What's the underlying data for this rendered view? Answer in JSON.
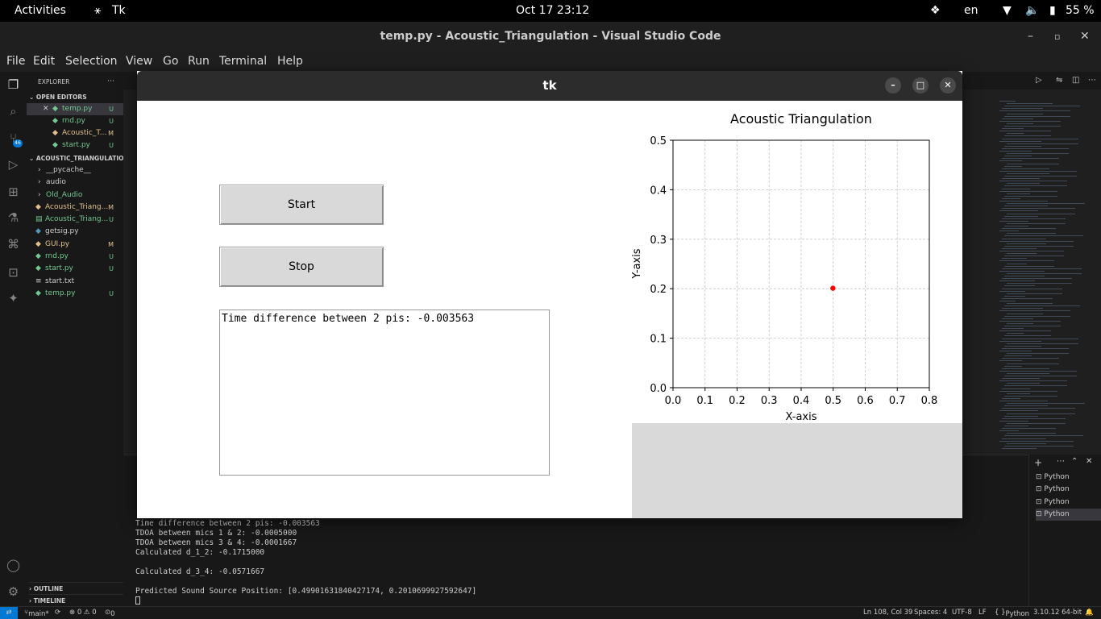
{
  "topbar": {
    "activities": "Activities",
    "app": "Tk",
    "clock": "Oct 17  23:12",
    "lang": "en",
    "battery": "55 %"
  },
  "vscode": {
    "title": "temp.py - Acoustic_Triangulation - Visual Studio Code",
    "menu": [
      "File",
      "Edit",
      "Selection",
      "View",
      "Go",
      "Run",
      "Terminal",
      "Help"
    ],
    "explorer": {
      "header": "EXPLORER",
      "open_editors": "OPEN EDITORS",
      "open_files": [
        {
          "name": "temp.py",
          "badge": "U"
        },
        {
          "name": "rnd.py",
          "badge": "U"
        },
        {
          "name": "Acoustic_T...",
          "badge": "M"
        },
        {
          "name": "start.py",
          "badge": "U"
        }
      ],
      "project": "ACOUSTIC_TRIANGULATION",
      "folders": [
        "__pycache__",
        "audio",
        "Old_Audio"
      ],
      "files": [
        {
          "name": "Acoustic_Triang...",
          "badge": "M"
        },
        {
          "name": "Acoustic_Triang...",
          "badge": "U"
        },
        {
          "name": "getsig.py",
          "badge": ""
        },
        {
          "name": "GUI.py",
          "badge": "M"
        },
        {
          "name": "rnd.py",
          "badge": "U"
        },
        {
          "name": "start.py",
          "badge": "U"
        },
        {
          "name": "start.txt",
          "badge": ""
        },
        {
          "name": "temp.py",
          "badge": "U"
        }
      ],
      "outline": "OUTLINE",
      "timeline": "TIMELINE",
      "scm_badge": "46"
    },
    "terminal": {
      "lines": [
        "Time difference between 2 pis: -0.003563",
        "TDOA between mics 1 & 2: -0.0005000",
        "TDOA between mics 3 & 4: -0.0001667",
        "Calculated d_1_2: -0.1715000",
        "",
        "Calculated d_3_4: -0.0571667",
        "",
        "Predicted Sound Source Position: [0.49901631840427174, 0.2010699927592647]"
      ],
      "instances": [
        "Python",
        "Python",
        "Python",
        "Python"
      ]
    },
    "status": {
      "branch": "main*",
      "problems": "⊗ 0 ⚠ 0",
      "ports": "0",
      "position": "Ln 108, Col 39",
      "spaces": "Spaces: 4",
      "encoding": "UTF-8",
      "eol": "LF",
      "language": "Python",
      "interpreter": "3.10.12 64-bit"
    }
  },
  "tk": {
    "title": "tk",
    "start_label": "Start",
    "stop_label": "Stop",
    "output_text": "Time difference between 2 pis: -0.003563"
  },
  "chart_data": {
    "type": "scatter",
    "title": "Acoustic Triangulation",
    "xlabel": "X-axis",
    "ylabel": "Y-axis",
    "xlim": [
      0,
      0.8
    ],
    "ylim": [
      0,
      0.5
    ],
    "xticks": [
      0.0,
      0.1,
      0.2,
      0.3,
      0.4,
      0.5,
      0.6,
      0.7,
      0.8
    ],
    "yticks": [
      0.0,
      0.1,
      0.2,
      0.3,
      0.4,
      0.5
    ],
    "grid": true,
    "points": [
      {
        "x": 0.499,
        "y": 0.201
      }
    ],
    "point_color": "#ff0000"
  }
}
